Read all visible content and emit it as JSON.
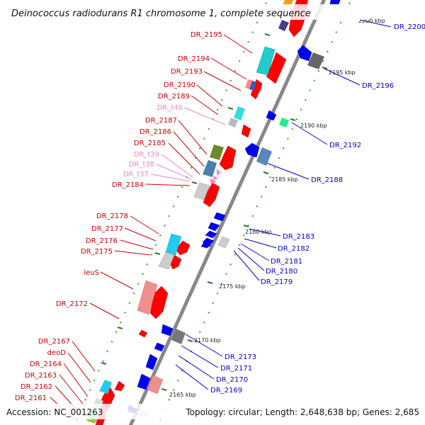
{
  "title": "Deinococcus radiodurans R1 chromosome 1, complete sequence",
  "footer": {
    "accession": "Accession: NC_001263",
    "summary": "Topology: circular; Length: 2,648,638 bp; Genes: 2,685"
  },
  "colors": {
    "backbone": "#888888",
    "forward_gene": "#ff0000",
    "reverse_gene": "#0000ff",
    "left_label": "#cc0000",
    "trna_label": "#ee88bb",
    "right_label": "#0000cc"
  },
  "kbp_ticks": [
    "2200 kbp",
    "2195 kbp",
    "2190 kbp",
    "2185 kbp",
    "2180 kbp",
    "2175 kbp",
    "2170 kbp",
    "2165 kbp"
  ],
  "left_labels": [
    {
      "text": "DR_2195",
      "kind": "gene"
    },
    {
      "text": "DR_2194",
      "kind": "gene"
    },
    {
      "text": "DR_2193",
      "kind": "gene"
    },
    {
      "text": "DR_2190",
      "kind": "gene"
    },
    {
      "text": "DR_2189",
      "kind": "gene"
    },
    {
      "text": "DR_t40",
      "kind": "trna"
    },
    {
      "text": "DR_2187",
      "kind": "gene"
    },
    {
      "text": "DR_2186",
      "kind": "gene"
    },
    {
      "text": "DR_2185",
      "kind": "gene"
    },
    {
      "text": "DR_t39",
      "kind": "trna"
    },
    {
      "text": "DR_t38",
      "kind": "trna"
    },
    {
      "text": "DR_t37",
      "kind": "trna"
    },
    {
      "text": "DR_2184",
      "kind": "gene"
    },
    {
      "text": "DR_2178",
      "kind": "gene"
    },
    {
      "text": "DR_2177",
      "kind": "gene"
    },
    {
      "text": "DR_2176",
      "kind": "gene"
    },
    {
      "text": "DR_2175",
      "kind": "gene"
    },
    {
      "text": "leuS",
      "kind": "gene"
    },
    {
      "text": "DR_2172",
      "kind": "gene"
    },
    {
      "text": "DR_2167",
      "kind": "gene"
    },
    {
      "text": "deoD",
      "kind": "gene"
    },
    {
      "text": "DR_2164",
      "kind": "gene"
    },
    {
      "text": "DR_2163",
      "kind": "gene"
    },
    {
      "text": "DR_2162",
      "kind": "gene"
    },
    {
      "text": "DR_2161",
      "kind": "gene"
    }
  ],
  "right_labels": [
    "DR_2200",
    "DR_2196",
    "DR_2192",
    "DR_2188",
    "DR_2183",
    "DR_2182",
    "DR_2181",
    "DR_2180",
    "DR_2179",
    "DR_2173",
    "DR_2171",
    "DR_2170",
    "DR_2169"
  ]
}
